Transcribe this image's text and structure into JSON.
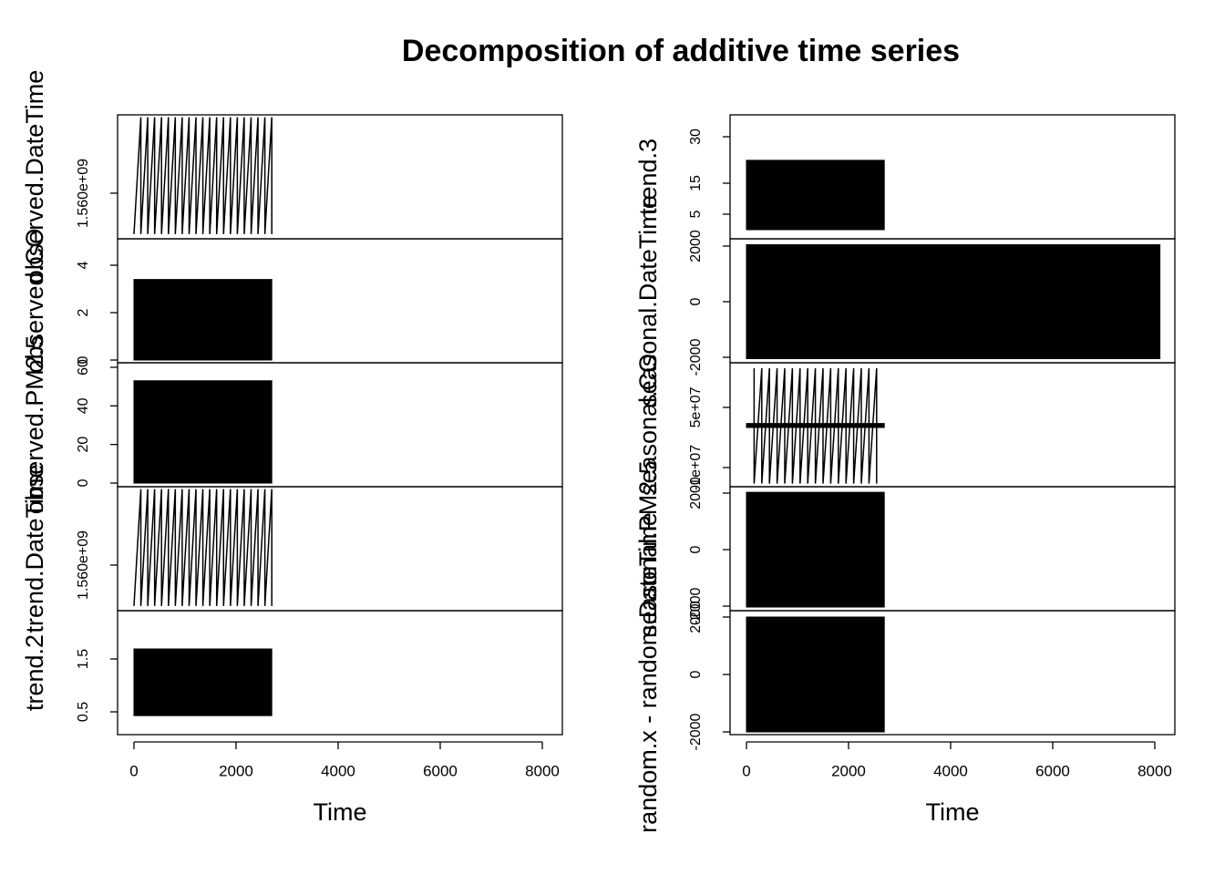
{
  "title": "Decomposition of additive time series",
  "chart_data": [
    {
      "type": "line",
      "ylabel": "observed.DateTime",
      "xlim": [
        -321,
        8393
      ],
      "ylim": [
        1552200000,
        1573400000
      ],
      "yticks": [
        {
          "value": 1560000000,
          "label": "1.560e+09"
        }
      ],
      "line": {
        "x": [
          0,
          135,
          135,
          270,
          270,
          405,
          405,
          540,
          540,
          675,
          675,
          810,
          810,
          945,
          945,
          1080,
          1080,
          1215,
          1215,
          1350,
          1350,
          1485,
          1485,
          1620,
          1620,
          1755,
          1755,
          1890,
          1890,
          2025,
          2025,
          2160,
          2160,
          2295,
          2295,
          2430,
          2430,
          2565,
          2565,
          2700,
          2700
        ],
        "values": [
          1553000000,
          1573000000,
          1553000000,
          1573000000,
          1553000000,
          1573000000,
          1553000000,
          1573000000,
          1553000000,
          1573000000,
          1553000000,
          1573000000,
          1553000000,
          1573000000,
          1553000000,
          1573000000,
          1553000000,
          1573000000,
          1553000000,
          1573000000,
          1553000000,
          1573000000,
          1553000000,
          1573000000,
          1553000000,
          1573000000,
          1553000000,
          1573000000,
          1553000000,
          1573000000,
          1553000000,
          1573000000,
          1553000000,
          1573000000,
          1553000000,
          1573000000,
          1553000000,
          1573000000,
          1553000000,
          1573000000,
          1553000000
        ]
      }
    },
    {
      "type": "line",
      "ylabel": "observed.CO",
      "xlim": [
        -321,
        8393
      ],
      "ylim": [
        -0.115,
        5.115
      ],
      "yticks": [
        0,
        2,
        4
      ],
      "band": {
        "x": [
          0,
          2700
        ],
        "lower": [
          0,
          0
        ],
        "upper": [
          3.4,
          3.4
        ]
      }
    },
    {
      "type": "line",
      "ylabel": "observed.PM2.5",
      "xlim": [
        -321,
        8393
      ],
      "ylim": [
        -1.9,
        62.35
      ],
      "yticks": [
        0,
        20,
        40,
        60
      ],
      "band": {
        "x": [
          0,
          2700
        ],
        "lower": [
          0,
          0
        ],
        "upper": [
          53,
          53
        ]
      }
    },
    {
      "type": "line",
      "ylabel": "trend.DateTime",
      "xlim": [
        -321,
        8393
      ],
      "ylim": [
        1552200000,
        1573400000
      ],
      "yticks": [
        {
          "value": 1560000000,
          "label": "1.560e+09"
        }
      ],
      "line": {
        "x": [
          0,
          135,
          135,
          270,
          270,
          405,
          405,
          540,
          540,
          675,
          675,
          810,
          810,
          945,
          945,
          1080,
          1080,
          1215,
          1215,
          1350,
          1350,
          1485,
          1485,
          1620,
          1620,
          1755,
          1755,
          1890,
          1890,
          2025,
          2025,
          2160,
          2160,
          2295,
          2295,
          2430,
          2430,
          2565,
          2565,
          2700,
          2700
        ],
        "values": [
          1553000000,
          1573000000,
          1553000000,
          1573000000,
          1553000000,
          1573000000,
          1553000000,
          1573000000,
          1553000000,
          1573000000,
          1553000000,
          1573000000,
          1553000000,
          1573000000,
          1553000000,
          1573000000,
          1553000000,
          1573000000,
          1553000000,
          1573000000,
          1553000000,
          1573000000,
          1553000000,
          1573000000,
          1553000000,
          1573000000,
          1553000000,
          1573000000,
          1553000000,
          1573000000,
          1553000000,
          1573000000,
          1553000000,
          1573000000,
          1553000000,
          1573000000,
          1553000000,
          1573000000,
          1553000000,
          1573000000,
          1553000000
        ]
      }
    },
    {
      "type": "line",
      "ylabel": "trend.2",
      "xlim": [
        -321,
        8393
      ],
      "ylim": [
        0.069,
        2.414
      ],
      "yticks": [
        0.5,
        1.5
      ],
      "band": {
        "x": [
          0,
          2700
        ],
        "lower": [
          0.43,
          0.43
        ],
        "upper": [
          1.69,
          1.69
        ]
      },
      "xticks": [
        0,
        2000,
        4000,
        6000,
        8000
      ],
      "xlabel": "Time"
    },
    {
      "type": "line",
      "ylabel": "trend.3",
      "xlim": [
        -321,
        8393
      ],
      "ylim": [
        -2.94,
        37.06
      ],
      "yticks": [
        5,
        15,
        30
      ],
      "band": {
        "x": [
          0,
          2700
        ],
        "lower": [
          0,
          0
        ],
        "upper": [
          22.4,
          22.4
        ]
      }
    },
    {
      "type": "line",
      "ylabel": "seasonal.DateTime",
      "xlim": [
        -321,
        8393
      ],
      "ylim": [
        -2197,
        2262
      ],
      "yticks": [
        -2000,
        0,
        2000
      ],
      "band": {
        "x": [
          0,
          8100
        ],
        "lower": [
          -2050,
          -2050
        ],
        "upper": [
          2050,
          2050
        ]
      }
    },
    {
      "type": "line",
      "ylabel": "seasonal.CO",
      "xlim": [
        -321,
        8393
      ],
      "ylim": [
        -29100000,
        94500000
      ],
      "yticks": [
        {
          "value": -10000000,
          "label": "-1e+07"
        },
        {
          "value": 50000000,
          "label": "5e+07"
        }
      ],
      "band": {
        "x": [
          0,
          2700
        ],
        "lower": [
          30000000,
          30000000
        ],
        "upper": [
          34000000,
          34000000
        ]
      },
      "line": {
        "x": [
          150,
          150,
          300,
          300,
          450,
          450,
          600,
          600,
          750,
          750,
          900,
          900,
          1050,
          1050,
          1200,
          1200,
          1350,
          1350,
          1500,
          1500,
          1650,
          1650,
          1800,
          1800,
          1950,
          1950,
          2100,
          2100,
          2250,
          2250,
          2400,
          2400,
          2550,
          2550
        ],
        "values": [
          89000000,
          -26000000,
          89000000,
          -26000000,
          89000000,
          -26000000,
          89000000,
          -26000000,
          89000000,
          -26000000,
          89000000,
          -26000000,
          89000000,
          -26000000,
          89000000,
          -26000000,
          89000000,
          -26000000,
          89000000,
          -26000000,
          89000000,
          -26000000,
          89000000,
          -26000000,
          89000000,
          -26000000,
          89000000,
          -26000000,
          89000000,
          -26000000,
          89000000,
          -26000000,
          89000000,
          -26000000
        ]
      }
    },
    {
      "type": "line",
      "ylabel": "seasonal.PM2.5",
      "xlim": [
        -321,
        8393
      ],
      "ylim": [
        -2161,
        2226
      ],
      "yticks": [
        -2000,
        0,
        2000
      ],
      "band": {
        "x": [
          0,
          2700
        ],
        "lower": [
          -2030,
          -2030
        ],
        "upper": [
          2030,
          2030
        ]
      }
    },
    {
      "type": "line",
      "ylabel": "random.x - random.DateTime",
      "xlim": [
        -321,
        8393
      ],
      "ylim": [
        -2095,
        2222
      ],
      "yticks": [
        -2000,
        0,
        2000
      ],
      "band": {
        "x": [
          0,
          2700
        ],
        "lower": [
          -2000,
          -2000
        ],
        "upper": [
          2000,
          2000
        ]
      },
      "xticks": [
        0,
        2000,
        4000,
        6000,
        8000
      ],
      "xlabel": "Time"
    }
  ]
}
